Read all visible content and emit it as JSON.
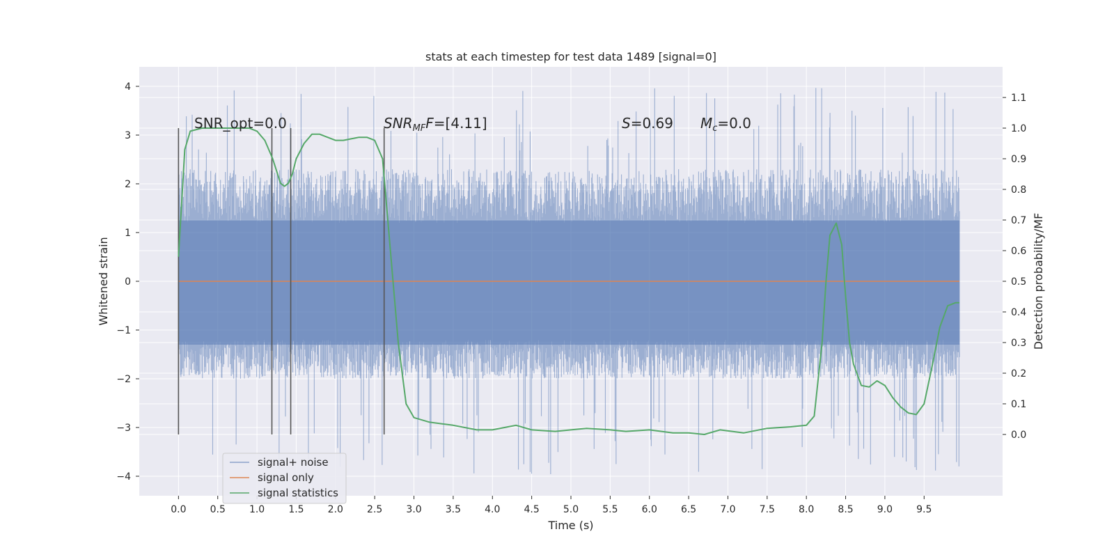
{
  "chart_data": {
    "type": "line",
    "title": "stats at each timestep for test data 1489 [signal=0]",
    "xlabel": "Time (s)",
    "ylabel_left": "Whitened strain",
    "ylabel_right": "Detection probability/MF",
    "xlim": [
      -0.5,
      10.5
    ],
    "ylim_left": [
      -4.4,
      4.4
    ],
    "ylim_right": [
      -0.2,
      1.2
    ],
    "xticks": [
      0.0,
      0.5,
      1.0,
      1.5,
      2.0,
      2.5,
      3.0,
      3.5,
      4.0,
      4.5,
      5.0,
      5.5,
      6.0,
      6.5,
      7.0,
      7.5,
      8.0,
      8.5,
      9.0,
      9.5
    ],
    "yticks_left": [
      4,
      3,
      2,
      1,
      0,
      -1,
      -2,
      -3,
      -4
    ],
    "yticks_left_labels": [
      "4",
      "3",
      "2",
      "1",
      "0",
      "−1",
      "−2",
      "−3",
      "−4"
    ],
    "yticks_right": [
      1.1,
      1.0,
      0.9,
      0.8,
      0.7,
      0.6,
      0.5,
      0.4,
      0.3,
      0.2,
      0.1,
      0.0
    ],
    "grid": true,
    "legend_position": "lower-left",
    "annotations": {
      "snr_opt": "SNR_opt=0.0",
      "snr_mf_prefix": "SNR",
      "snr_mf_sub": "MF",
      "snr_mf_value": "=[4.11]",
      "s_label": "S",
      "s_value": "=0.69",
      "mc_label": "M",
      "mc_sub": "c",
      "mc_value": "=0.0"
    },
    "vertical_markers": [
      0.0,
      1.19,
      1.43,
      2.62
    ],
    "series": [
      {
        "name": "signal+ noise",
        "color": "#4c72b0",
        "axis": "left",
        "style": "noise band",
        "x_range": [
          0.0,
          9.95
        ],
        "typical_amplitude": [
          -2.0,
          2.3
        ],
        "peak_extremes": [
          -4.0,
          4.0
        ]
      },
      {
        "name": "signal only",
        "color": "#dd8452",
        "axis": "left",
        "x": [
          0.0,
          9.95
        ],
        "y": [
          0.0,
          0.0
        ]
      },
      {
        "name": "signal statistics",
        "color": "#55a868",
        "axis": "right",
        "x": [
          0.0,
          0.08,
          0.15,
          0.3,
          0.5,
          0.7,
          0.9,
          1.0,
          1.1,
          1.2,
          1.3,
          1.35,
          1.4,
          1.45,
          1.5,
          1.6,
          1.7,
          1.8,
          1.9,
          2.0,
          2.1,
          2.2,
          2.3,
          2.4,
          2.5,
          2.6,
          2.7,
          2.8,
          2.9,
          3.0,
          3.2,
          3.5,
          3.8,
          4.0,
          4.2,
          4.3,
          4.5,
          4.8,
          5.0,
          5.2,
          5.5,
          5.7,
          6.0,
          6.3,
          6.5,
          6.7,
          6.9,
          7.2,
          7.5,
          7.8,
          8.0,
          8.1,
          8.2,
          8.25,
          8.3,
          8.38,
          8.45,
          8.5,
          8.55,
          8.6,
          8.7,
          8.8,
          8.9,
          9.0,
          9.1,
          9.2,
          9.3,
          9.4,
          9.5,
          9.6,
          9.7,
          9.8,
          9.9,
          9.95
        ],
        "y": [
          0.58,
          0.93,
          0.99,
          1.0,
          1.0,
          1.0,
          1.0,
          0.99,
          0.96,
          0.9,
          0.82,
          0.81,
          0.82,
          0.85,
          0.9,
          0.95,
          0.98,
          0.98,
          0.97,
          0.96,
          0.96,
          0.965,
          0.97,
          0.97,
          0.96,
          0.9,
          0.6,
          0.3,
          0.1,
          0.055,
          0.04,
          0.03,
          0.015,
          0.015,
          0.025,
          0.03,
          0.015,
          0.01,
          0.015,
          0.02,
          0.015,
          0.01,
          0.015,
          0.005,
          0.005,
          0.0,
          0.015,
          0.005,
          0.02,
          0.025,
          0.03,
          0.06,
          0.3,
          0.5,
          0.65,
          0.69,
          0.62,
          0.45,
          0.3,
          0.23,
          0.16,
          0.155,
          0.175,
          0.16,
          0.12,
          0.09,
          0.07,
          0.065,
          0.1,
          0.22,
          0.35,
          0.42,
          0.43,
          0.43
        ]
      }
    ]
  }
}
